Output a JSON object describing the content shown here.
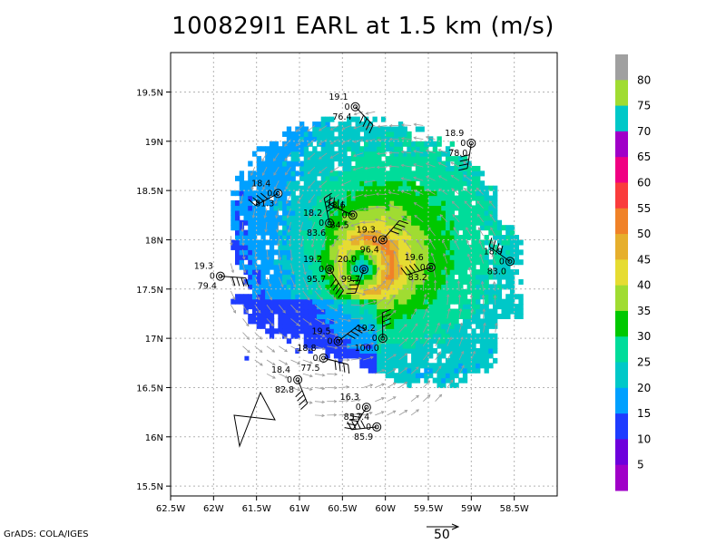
{
  "title": "100829I1 EARL at 1.5 km (m/s)",
  "credit": "GrADS: COLA/IGES",
  "reference_vector_label": "50",
  "chart_data": {
    "type": "heatmap",
    "title": "100829I1 EARL at 1.5 km (m/s)",
    "variable": "wind speed (m/s)",
    "xlim": [
      -62.5,
      -58.0
    ],
    "ylim": [
      15.4,
      19.9
    ],
    "x_ticks": [
      -62.5,
      -62,
      -61.5,
      -61,
      -60.5,
      -60,
      -59.5,
      -59,
      -58.5
    ],
    "x_tick_labels": [
      "62.5W",
      "62W",
      "61.5W",
      "61W",
      "60.5W",
      "60W",
      "59.5W",
      "59W",
      "58.5W"
    ],
    "y_ticks": [
      15.5,
      16,
      16.5,
      17,
      17.5,
      18,
      18.5,
      19,
      19.5
    ],
    "y_tick_labels": [
      "15.5N",
      "16N",
      "16.5N",
      "17N",
      "17.5N",
      "18N",
      "18.5N",
      "19N",
      "19.5N"
    ],
    "grid": true,
    "colorbar": {
      "levels": [
        5,
        10,
        15,
        20,
        25,
        30,
        35,
        40,
        45,
        50,
        55,
        60,
        65,
        70,
        75,
        80
      ],
      "colors": [
        "#a000c8",
        "#6e00dc",
        "#1e3cff",
        "#00a0ff",
        "#00c8c8",
        "#00dc9a",
        "#00c800",
        "#a0dc32",
        "#e6dc32",
        "#e6af2d",
        "#f08228",
        "#fa3c3c",
        "#f00082",
        "#a000c8",
        "#00c8c8",
        "#a0dc32",
        "#a0a0a0"
      ]
    },
    "center": {
      "lon": -60.25,
      "lat": 17.72,
      "peak_speed_approx": 50
    },
    "dropsonde_stations": [
      {
        "lon": -60.35,
        "lat": 19.35,
        "label_top": "19.1",
        "label_mid": "0",
        "label_bot": "76.4"
      },
      {
        "lon": -59.0,
        "lat": 18.98,
        "label_top": "18.9",
        "label_mid": "0",
        "label_bot": "78.0"
      },
      {
        "lon": -61.25,
        "lat": 18.47,
        "label_top": "18.4",
        "label_mid": "0",
        "label_bot": "81.3"
      },
      {
        "lon": -60.38,
        "lat": 18.25,
        "label_top": "18.6",
        "label_mid": "0",
        "label_bot": "84.5"
      },
      {
        "lon": -60.65,
        "lat": 18.17,
        "label_top": "18.2",
        "label_mid": "0",
        "label_bot": "83.6"
      },
      {
        "lon": -60.03,
        "lat": 18.0,
        "label_top": "19.3",
        "label_mid": "0",
        "label_bot": "96.4"
      },
      {
        "lon": -61.92,
        "lat": 17.63,
        "label_top": "19.3",
        "label_mid": "0",
        "label_bot": "79.4"
      },
      {
        "lon": -60.65,
        "lat": 17.7,
        "label_top": "19.2",
        "label_mid": "0",
        "label_bot": "95.7"
      },
      {
        "lon": -60.25,
        "lat": 17.7,
        "label_top": "20.0",
        "label_mid": "0",
        "label_bot": "99.7"
      },
      {
        "lon": -59.47,
        "lat": 17.72,
        "label_top": "19.6",
        "label_mid": "0",
        "label_bot": "83.2"
      },
      {
        "lon": -58.55,
        "lat": 17.78,
        "label_top": "18.9",
        "label_mid": "0",
        "label_bot": "83.0"
      },
      {
        "lon": -60.03,
        "lat": 17.0,
        "label_top": "19.2",
        "label_mid": "0",
        "label_bot": "100.0"
      },
      {
        "lon": -60.55,
        "lat": 16.97,
        "label_top": "19.5",
        "label_mid": "0",
        "label_bot": ""
      },
      {
        "lon": -60.72,
        "lat": 16.8,
        "label_top": "18.8",
        "label_mid": "0",
        "label_bot": "77.5"
      },
      {
        "lon": -61.02,
        "lat": 16.58,
        "label_top": "18.4",
        "label_mid": "0",
        "label_bot": "82.8"
      },
      {
        "lon": -60.22,
        "lat": 16.3,
        "label_top": "16.3",
        "label_mid": "0",
        "label_bot": "85.7"
      },
      {
        "lon": -60.1,
        "lat": 16.1,
        "label_top": "17.4",
        "label_mid": "0",
        "label_bot": "85.9"
      }
    ]
  }
}
